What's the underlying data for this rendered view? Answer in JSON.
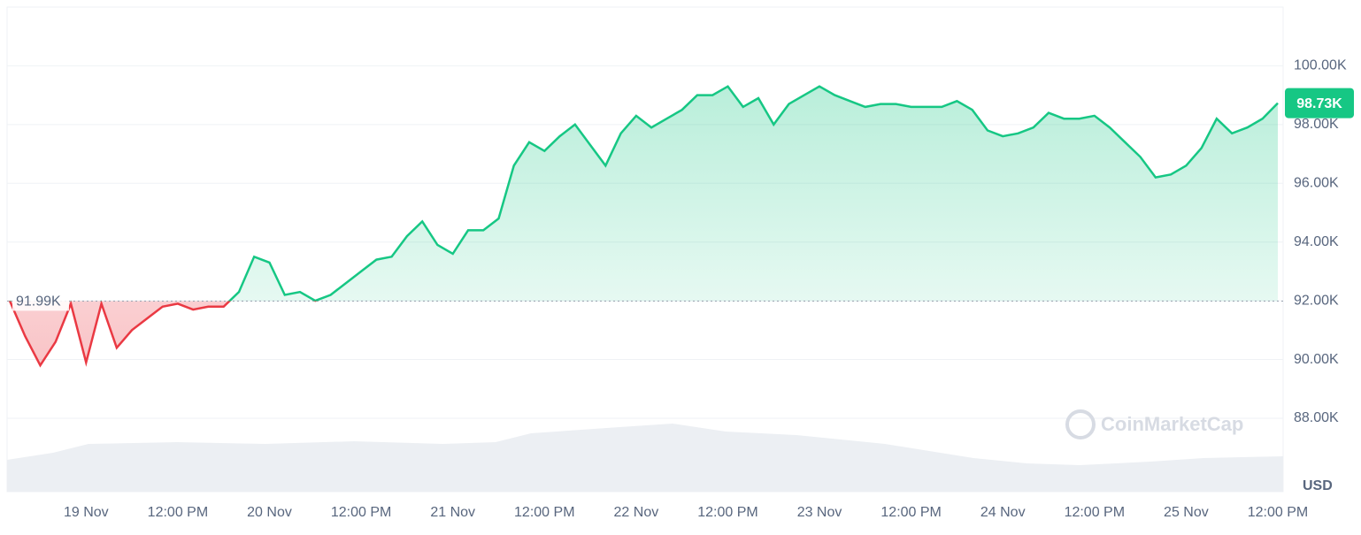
{
  "chart_data": {
    "type": "line",
    "categories": [
      null,
      null,
      null,
      null,
      null,
      "19 Nov",
      null,
      null,
      null,
      null,
      null,
      "12:00 PM",
      null,
      null,
      null,
      null,
      null,
      "20 Nov",
      null,
      null,
      null,
      null,
      null,
      "12:00 PM",
      null,
      null,
      null,
      null,
      null,
      "21 Nov",
      null,
      null,
      null,
      null,
      null,
      "12:00 PM",
      null,
      null,
      null,
      null,
      null,
      "22 Nov",
      null,
      null,
      null,
      null,
      null,
      "12:00 PM",
      null,
      null,
      null,
      null,
      null,
      "23 Nov",
      null,
      null,
      null,
      null,
      null,
      "12:00 PM",
      null,
      null,
      null,
      null,
      null,
      "24 Nov",
      null,
      null,
      null,
      null,
      null,
      "12:00 PM",
      null,
      null,
      null,
      null,
      null,
      "25 Nov",
      null,
      null,
      null,
      null,
      null,
      "12:00 PM"
    ],
    "values": [
      92.0,
      90.8,
      89.8,
      90.6,
      91.9,
      89.9,
      91.9,
      90.4,
      91.0,
      91.4,
      91.8,
      91.9,
      91.7,
      91.8,
      91.8,
      92.3,
      93.5,
      93.3,
      92.2,
      92.3,
      92.0,
      92.2,
      92.6,
      93.0,
      93.4,
      93.5,
      94.2,
      94.7,
      93.9,
      93.6,
      94.4,
      94.4,
      94.8,
      96.6,
      97.4,
      97.1,
      97.6,
      98.0,
      97.3,
      96.6,
      97.7,
      98.3,
      97.9,
      98.2,
      98.5,
      99.0,
      99.0,
      99.3,
      98.6,
      98.9,
      98.0,
      98.7,
      99.0,
      99.3,
      99.0,
      98.8,
      98.6,
      98.7,
      98.7,
      98.6,
      98.6,
      98.6,
      98.8,
      98.5,
      97.8,
      97.6,
      97.7,
      97.9,
      98.4,
      98.2,
      98.2,
      98.3,
      97.9,
      97.4,
      96.9,
      96.2,
      96.3,
      96.6,
      97.2,
      98.2,
      97.7,
      97.9,
      98.2,
      98.73
    ],
    "current_price": {
      "value": 98.73,
      "label": "98.73K"
    },
    "baseline": {
      "value": 91.99,
      "label": "91.99K"
    },
    "up_color": "#16c784",
    "down_color": "#ea3943",
    "ylim": [
      85.5,
      102
    ],
    "yticks": [
      {
        "value": 88,
        "label": "88.00K"
      },
      {
        "value": 90,
        "label": "90.00K"
      },
      {
        "value": 92,
        "label": "92.00K"
      },
      {
        "value": 94,
        "label": "94.00K"
      },
      {
        "value": 96,
        "label": "96.00K"
      },
      {
        "value": 98,
        "label": "98.00K"
      },
      {
        "value": 100,
        "label": "100.00K"
      }
    ],
    "y_label": "USD",
    "watermark": "CoinMarketCap",
    "grid": true
  }
}
